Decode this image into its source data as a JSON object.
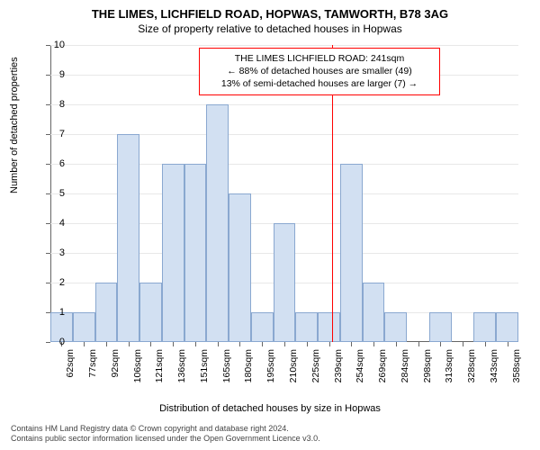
{
  "title_main": "THE LIMES, LICHFIELD ROAD, HOPWAS, TAMWORTH, B78 3AG",
  "title_sub": "Size of property relative to detached houses in Hopwas",
  "y_axis_label": "Number of detached properties",
  "x_axis_label": "Distribution of detached houses by size in Hopwas",
  "footer_line1": "Contains HM Land Registry data © Crown copyright and database right 2024.",
  "footer_line2": "Contains public sector information licensed under the Open Government Licence v3.0.",
  "chart": {
    "type": "bar",
    "ylim": [
      0,
      10
    ],
    "ytick_step": 1,
    "background_color": "#ffffff",
    "grid_color": "#e8e8e8",
    "axis_color": "#666666",
    "bar_fill": "#d2e0f2",
    "bar_border": "#8aa8d0",
    "bar_width_ratio": 1.0,
    "marker_color": "#ff0000",
    "marker_x_value": 241,
    "info_box": {
      "border_color": "#ff0000",
      "bg": "#ffffff",
      "line1": "THE LIMES LICHFIELD ROAD: 241sqm",
      "line2": "← 88% of detached houses are smaller (49)",
      "line3": "13% of semi-detached houses are larger (7) →"
    },
    "categories": [
      "62sqm",
      "77sqm",
      "92sqm",
      "106sqm",
      "121sqm",
      "136sqm",
      "151sqm",
      "165sqm",
      "180sqm",
      "195sqm",
      "210sqm",
      "225sqm",
      "239sqm",
      "254sqm",
      "269sqm",
      "284sqm",
      "298sqm",
      "313sqm",
      "328sqm",
      "343sqm",
      "358sqm"
    ],
    "values": [
      1,
      1,
      2,
      7,
      2,
      6,
      6,
      8,
      5,
      1,
      4,
      1,
      1,
      6,
      2,
      1,
      0,
      1,
      0,
      1,
      1
    ],
    "title_fontsize": 13,
    "subtitle_fontsize": 12,
    "label_fontsize": 11,
    "tick_fontsize": 11
  }
}
